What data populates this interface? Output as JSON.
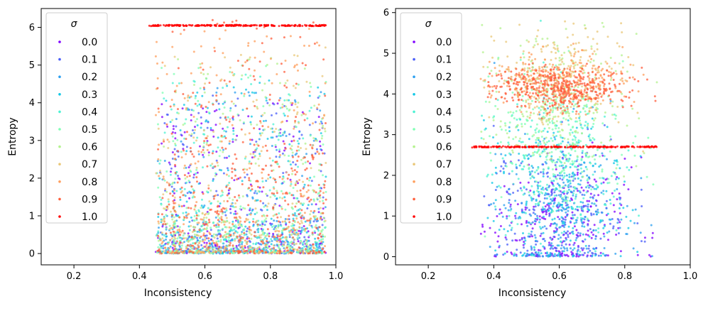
{
  "figure": {
    "title": ""
  },
  "chart_data": [
    {
      "type": "scatter",
      "panel": "left",
      "title": "",
      "xlabel": "Inconsistency",
      "ylabel": "Entropy",
      "xlim": [
        0.1,
        1.0
      ],
      "ylim": [
        -0.3,
        6.5
      ],
      "xticks": [
        "0.2",
        "0.4",
        "0.6",
        "0.8",
        "1.0"
      ],
      "xtick_values": [
        0.2,
        0.4,
        0.6,
        0.8,
        1.0
      ],
      "yticks": [
        "0",
        "1",
        "2",
        "3",
        "4",
        "5",
        "6"
      ],
      "ytick_values": [
        0,
        1,
        2,
        3,
        4,
        5,
        6
      ],
      "legend": {
        "title": "σ",
        "position": "upper-left",
        "entries": [
          "0.0",
          "0.1",
          "0.2",
          "0.3",
          "0.4",
          "0.5",
          "0.6",
          "0.7",
          "0.8",
          "0.9",
          "1.0"
        ]
      },
      "series": [
        {
          "name": "0.0",
          "color": "#8000ff",
          "x_range": [
            0.45,
            0.97
          ],
          "y_peak": 0.3,
          "y_max": 4.0,
          "n": 260
        },
        {
          "name": "0.1",
          "color": "#4a5ef9",
          "x_range": [
            0.45,
            0.97
          ],
          "y_peak": 0.4,
          "y_max": 4.2,
          "n": 260
        },
        {
          "name": "0.2",
          "color": "#2b9ff0",
          "x_range": [
            0.45,
            0.97
          ],
          "y_peak": 0.5,
          "y_max": 4.4,
          "n": 260
        },
        {
          "name": "0.3",
          "color": "#12c8e6",
          "x_range": [
            0.45,
            0.97
          ],
          "y_peak": 0.5,
          "y_max": 4.6,
          "n": 260
        },
        {
          "name": "0.4",
          "color": "#4df2d3",
          "x_range": [
            0.45,
            0.97
          ],
          "y_peak": 0.6,
          "y_max": 4.8,
          "n": 260
        },
        {
          "name": "0.5",
          "color": "#80ffb4",
          "x_range": [
            0.45,
            0.97
          ],
          "y_peak": 0.7,
          "y_max": 5.0,
          "n": 260
        },
        {
          "name": "0.6",
          "color": "#b4f28f",
          "x_range": [
            0.45,
            0.97
          ],
          "y_peak": 0.7,
          "y_max": 5.2,
          "n": 260
        },
        {
          "name": "0.7",
          "color": "#eac87a",
          "x_range": [
            0.45,
            0.97
          ],
          "y_peak": 0.8,
          "y_max": 5.5,
          "n": 260
        },
        {
          "name": "0.8",
          "color": "#ff9f5e",
          "x_range": [
            0.45,
            0.97
          ],
          "y_peak": 0.8,
          "y_max": 6.0,
          "n": 300
        },
        {
          "name": "0.9",
          "color": "#ff5e3c",
          "x_range": [
            0.45,
            0.97
          ],
          "y_peak": 1.5,
          "y_max": 6.2,
          "n": 420
        },
        {
          "name": "1.0",
          "color": "#ff0000",
          "x_range": [
            0.43,
            0.97
          ],
          "y_line": 6.05,
          "n": 240
        }
      ]
    },
    {
      "type": "scatter",
      "panel": "right",
      "title": "",
      "xlabel": "Inconsistency",
      "ylabel": "Entropy",
      "xlim": [
        0.1,
        1.0
      ],
      "ylim": [
        -0.2,
        6.1
      ],
      "xticks": [
        "0.2",
        "0.4",
        "0.6",
        "0.8",
        "1.0"
      ],
      "xtick_values": [
        0.2,
        0.4,
        0.6,
        0.8,
        1.0
      ],
      "yticks": [
        "0",
        "1",
        "2",
        "3",
        "4",
        "5",
        "6"
      ],
      "ytick_values": [
        0,
        1,
        2,
        3,
        4,
        5,
        6
      ],
      "legend": {
        "title": "σ",
        "position": "upper-left",
        "entries": [
          "0.0",
          "0.1",
          "0.2",
          "0.3",
          "0.4",
          "0.5",
          "0.6",
          "0.7",
          "0.8",
          "0.9",
          "1.0"
        ]
      },
      "series": [
        {
          "name": "0.0",
          "color": "#8000ff",
          "x_range": [
            0.36,
            0.9
          ],
          "y_center": 0.8,
          "y_spread": 0.8,
          "n": 250
        },
        {
          "name": "0.1",
          "color": "#4a5ef9",
          "x_range": [
            0.36,
            0.9
          ],
          "y_center": 1.0,
          "y_spread": 0.9,
          "n": 250
        },
        {
          "name": "0.2",
          "color": "#2b9ff0",
          "x_range": [
            0.36,
            0.9
          ],
          "y_center": 1.2,
          "y_spread": 1.0,
          "n": 250
        },
        {
          "name": "0.3",
          "color": "#12c8e6",
          "x_range": [
            0.36,
            0.9
          ],
          "y_center": 1.5,
          "y_spread": 1.1,
          "n": 240
        },
        {
          "name": "0.4",
          "color": "#4df2d3",
          "x_range": [
            0.36,
            0.9
          ],
          "y_center": 2.2,
          "y_spread": 1.0,
          "n": 240
        },
        {
          "name": "0.5",
          "color": "#80ffb4",
          "x_range": [
            0.36,
            0.9
          ],
          "y_center": 3.0,
          "y_spread": 0.9,
          "n": 240
        },
        {
          "name": "0.6",
          "color": "#b4f28f",
          "x_range": [
            0.36,
            0.9
          ],
          "y_center": 3.8,
          "y_spread": 0.8,
          "n": 240
        },
        {
          "name": "0.7",
          "color": "#eac87a",
          "x_range": [
            0.36,
            0.9
          ],
          "y_center": 4.4,
          "y_spread": 0.6,
          "n": 240
        },
        {
          "name": "0.8",
          "color": "#ff9f5e",
          "x_range": [
            0.36,
            0.9
          ],
          "y_center": 4.3,
          "y_spread": 0.35,
          "n": 300
        },
        {
          "name": "0.9",
          "color": "#ff5e3c",
          "x_range": [
            0.38,
            0.9
          ],
          "y_center": 4.15,
          "y_spread": 0.25,
          "n": 420
        },
        {
          "name": "1.0",
          "color": "#ff0000",
          "x_range": [
            0.33,
            0.9
          ],
          "y_line": 2.7,
          "n": 220
        }
      ]
    }
  ]
}
